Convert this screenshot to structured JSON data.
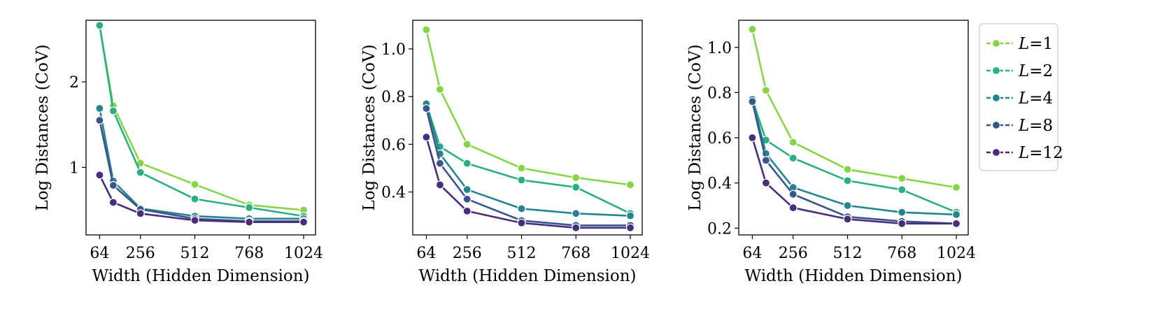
{
  "colors": {
    "L1": "#7ad151",
    "L2": "#22a884",
    "L4": "#2a788e",
    "L8": "#414487",
    "L12": "#440154",
    "series": [
      "#86d549",
      "#2ab07f",
      "#25858e",
      "#39568c",
      "#472d7b"
    ]
  },
  "legend": {
    "prefix": "L",
    "entries": [
      {
        "symbol": "L",
        "value": "=1"
      },
      {
        "symbol": "L",
        "value": "=2"
      },
      {
        "symbol": "L",
        "value": "=4"
      },
      {
        "symbol": "L",
        "value": "=8"
      },
      {
        "symbol": "L",
        "value": "=12"
      }
    ]
  },
  "chart_data": [
    {
      "type": "line",
      "xlabel": "Width (Hidden Dimension)",
      "ylabel": "Log Distances (CoV)",
      "xticks": [
        64,
        256,
        512,
        768,
        1024
      ],
      "yticks": [
        1,
        2
      ],
      "ytick_labels": [
        "1",
        "2"
      ],
      "xlim": [
        0,
        1080
      ],
      "ylim": [
        0.21,
        2.72
      ],
      "x": [
        64,
        128,
        256,
        512,
        768,
        1024
      ],
      "series": [
        {
          "name": "L=1",
          "values": [
            2.66,
            1.72,
            1.05,
            0.8,
            0.56,
            0.5
          ]
        },
        {
          "name": "L=2",
          "values": [
            2.66,
            1.66,
            0.94,
            0.63,
            0.53,
            0.43
          ]
        },
        {
          "name": "L=4",
          "values": [
            1.69,
            0.84,
            0.52,
            0.43,
            0.4,
            0.4
          ]
        },
        {
          "name": "L=8",
          "values": [
            1.55,
            0.79,
            0.51,
            0.4,
            0.37,
            0.37
          ]
        },
        {
          "name": "L=12",
          "values": [
            0.91,
            0.59,
            0.46,
            0.38,
            0.36,
            0.36
          ]
        }
      ]
    },
    {
      "type": "line",
      "xlabel": "Width (Hidden Dimension)",
      "ylabel": "Log Distances (CoV)",
      "xticks": [
        64,
        256,
        512,
        768,
        1024
      ],
      "yticks": [
        0.4,
        0.6,
        0.8,
        1.0
      ],
      "ytick_labels": [
        "0.4",
        "0.6",
        "0.8",
        "1.0"
      ],
      "xlim": [
        0,
        1080
      ],
      "ylim": [
        0.22,
        1.12
      ],
      "x": [
        64,
        128,
        256,
        512,
        768,
        1024
      ],
      "series": [
        {
          "name": "L=1",
          "values": [
            1.08,
            0.83,
            0.6,
            0.5,
            0.46,
            0.43
          ]
        },
        {
          "name": "L=2",
          "values": [
            0.77,
            0.59,
            0.52,
            0.45,
            0.42,
            0.31
          ]
        },
        {
          "name": "L=4",
          "values": [
            0.77,
            0.56,
            0.41,
            0.33,
            0.31,
            0.3
          ]
        },
        {
          "name": "L=8",
          "values": [
            0.75,
            0.52,
            0.37,
            0.28,
            0.26,
            0.26
          ]
        },
        {
          "name": "L=12",
          "values": [
            0.63,
            0.43,
            0.32,
            0.27,
            0.25,
            0.25
          ]
        }
      ]
    },
    {
      "type": "line",
      "xlabel": "Width (Hidden Dimension)",
      "ylabel": "Log Distances (CoV)",
      "xticks": [
        64,
        256,
        512,
        768,
        1024
      ],
      "yticks": [
        0.2,
        0.4,
        0.6,
        0.8,
        1.0
      ],
      "ytick_labels": [
        "0.2",
        "0.4",
        "0.6",
        "0.8",
        "1.0"
      ],
      "xlim": [
        0,
        1080
      ],
      "ylim": [
        0.17,
        1.12
      ],
      "x": [
        64,
        128,
        256,
        512,
        768,
        1024
      ],
      "series": [
        {
          "name": "L=1",
          "values": [
            1.08,
            0.81,
            0.58,
            0.46,
            0.42,
            0.38
          ]
        },
        {
          "name": "L=2",
          "values": [
            0.77,
            0.59,
            0.51,
            0.41,
            0.37,
            0.27
          ]
        },
        {
          "name": "L=4",
          "values": [
            0.77,
            0.53,
            0.38,
            0.3,
            0.27,
            0.26
          ]
        },
        {
          "name": "L=8",
          "values": [
            0.76,
            0.5,
            0.35,
            0.25,
            0.23,
            0.22
          ]
        },
        {
          "name": "L=12",
          "values": [
            0.6,
            0.4,
            0.29,
            0.24,
            0.22,
            0.22
          ]
        }
      ]
    }
  ]
}
